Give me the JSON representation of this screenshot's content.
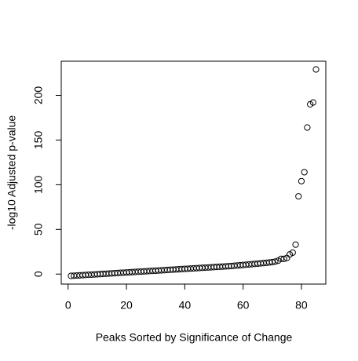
{
  "chart_data": {
    "type": "scatter",
    "x_label": "Peaks Sorted by Significance of Change",
    "y_label": "-log10 Adjusted p-value",
    "x": [
      1,
      2,
      3,
      4,
      5,
      6,
      7,
      8,
      9,
      10,
      11,
      12,
      13,
      14,
      15,
      16,
      17,
      18,
      19,
      20,
      21,
      22,
      23,
      24,
      25,
      26,
      27,
      28,
      29,
      30,
      31,
      32,
      33,
      34,
      35,
      36,
      37,
      38,
      39,
      40,
      41,
      42,
      43,
      44,
      45,
      46,
      47,
      48,
      49,
      50,
      51,
      52,
      53,
      54,
      55,
      56,
      57,
      58,
      59,
      60,
      61,
      62,
      63,
      64,
      65,
      66,
      67,
      68,
      69,
      70,
      71,
      72,
      73,
      74,
      75,
      76,
      77,
      78,
      79,
      80,
      81,
      82,
      83,
      84,
      85
    ],
    "values": [
      -2.0,
      -1.8,
      -1.6,
      -1.4,
      -1.2,
      -1.0,
      -0.8,
      -0.6,
      -0.4,
      -0.2,
      0.0,
      0.2,
      0.4,
      0.6,
      0.8,
      1.0,
      1.2,
      1.4,
      1.6,
      1.8,
      2.0,
      2.2,
      2.4,
      2.6,
      2.8,
      3.0,
      3.2,
      3.4,
      3.6,
      3.8,
      4.0,
      4.2,
      4.4,
      4.6,
      4.8,
      5.0,
      5.2,
      5.4,
      5.6,
      5.8,
      6.0,
      6.2,
      6.4,
      6.6,
      6.8,
      7.0,
      7.2,
      7.4,
      7.6,
      7.8,
      8.0,
      8.2,
      8.4,
      8.6,
      8.8,
      9.0,
      9.3,
      9.6,
      9.9,
      10.2,
      10.5,
      10.8,
      11.1,
      11.4,
      11.7,
      12.0,
      12.3,
      12.6,
      13.0,
      13.4,
      14,
      15,
      17,
      17,
      18,
      22,
      24,
      33,
      87,
      104,
      114,
      164,
      190,
      192,
      229
    ],
    "color": "#000000",
    "xlim": [
      -2.36,
      88.36
    ],
    "ylim": [
      -11.2,
      238.2
    ],
    "xticks": [
      0,
      20,
      40,
      60,
      80
    ],
    "yticks": [
      0,
      50,
      100,
      150,
      200
    ]
  }
}
